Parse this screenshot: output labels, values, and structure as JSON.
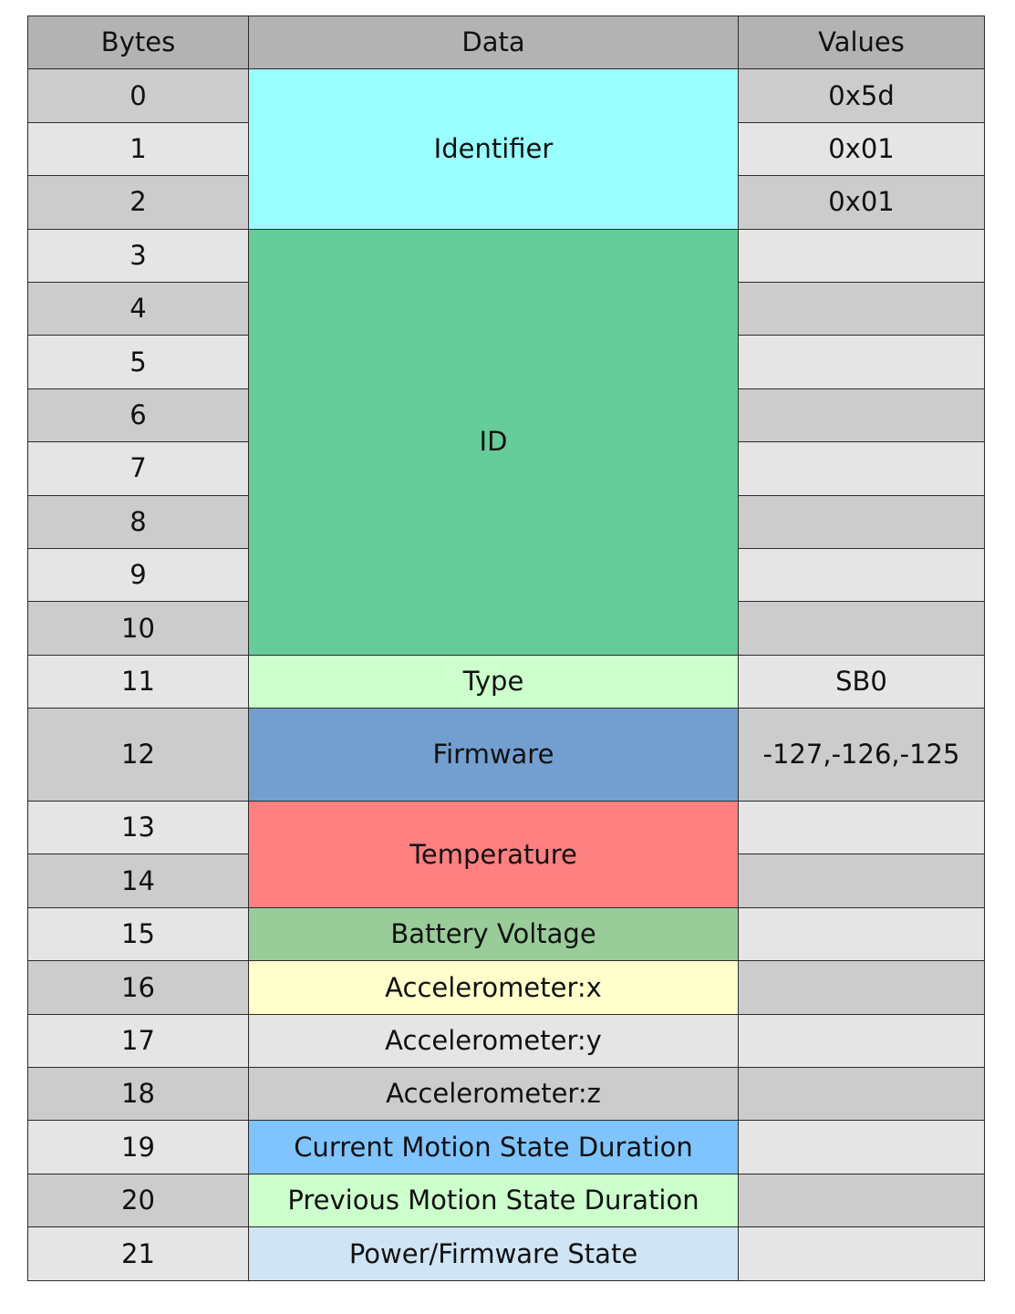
{
  "header": {
    "bytes": "Bytes",
    "data": "Data",
    "values": "Values"
  },
  "rows": [
    {
      "byte": "0",
      "value": "0x5d"
    },
    {
      "byte": "1",
      "value": "0x01"
    },
    {
      "byte": "2",
      "value": "0x01"
    },
    {
      "byte": "3",
      "value": ""
    },
    {
      "byte": "4",
      "value": ""
    },
    {
      "byte": "5",
      "value": ""
    },
    {
      "byte": "6",
      "value": ""
    },
    {
      "byte": "7",
      "value": ""
    },
    {
      "byte": "8",
      "value": ""
    },
    {
      "byte": "9",
      "value": ""
    },
    {
      "byte": "10",
      "value": ""
    },
    {
      "byte": "11",
      "value": "SB0"
    },
    {
      "byte": "12",
      "value": "-127,-126,-125"
    },
    {
      "byte": "13",
      "value": ""
    },
    {
      "byte": "14",
      "value": ""
    },
    {
      "byte": "15",
      "value": ""
    },
    {
      "byte": "16",
      "value": ""
    },
    {
      "byte": "17",
      "value": ""
    },
    {
      "byte": "18",
      "value": ""
    },
    {
      "byte": "19",
      "value": ""
    },
    {
      "byte": "20",
      "value": ""
    },
    {
      "byte": "21",
      "value": ""
    }
  ],
  "fields": [
    {
      "label": "Identifier",
      "color": "#99ffff"
    },
    {
      "label": "ID",
      "color": "#66cc99"
    },
    {
      "label": "Type",
      "color": "#ccffcc"
    },
    {
      "label": "Firmware",
      "color": "#729fcf"
    },
    {
      "label": "Temperature",
      "color": "#ff8080"
    },
    {
      "label": "Battery Voltage",
      "color": "#99cc99"
    },
    {
      "label": "Accelerometer:x",
      "color": "#ffffcc"
    },
    {
      "label": "Accelerometer:y",
      "color": "#e5e5e5"
    },
    {
      "label": "Accelerometer:z",
      "color": "#cccccc"
    },
    {
      "label": "Current Motion State Duration",
      "color": "#80c4ff"
    },
    {
      "label": "Previous Motion State Duration",
      "color": "#ccffcc"
    },
    {
      "label": "Power/Firmware State",
      "color": "#cfe5f5"
    }
  ]
}
